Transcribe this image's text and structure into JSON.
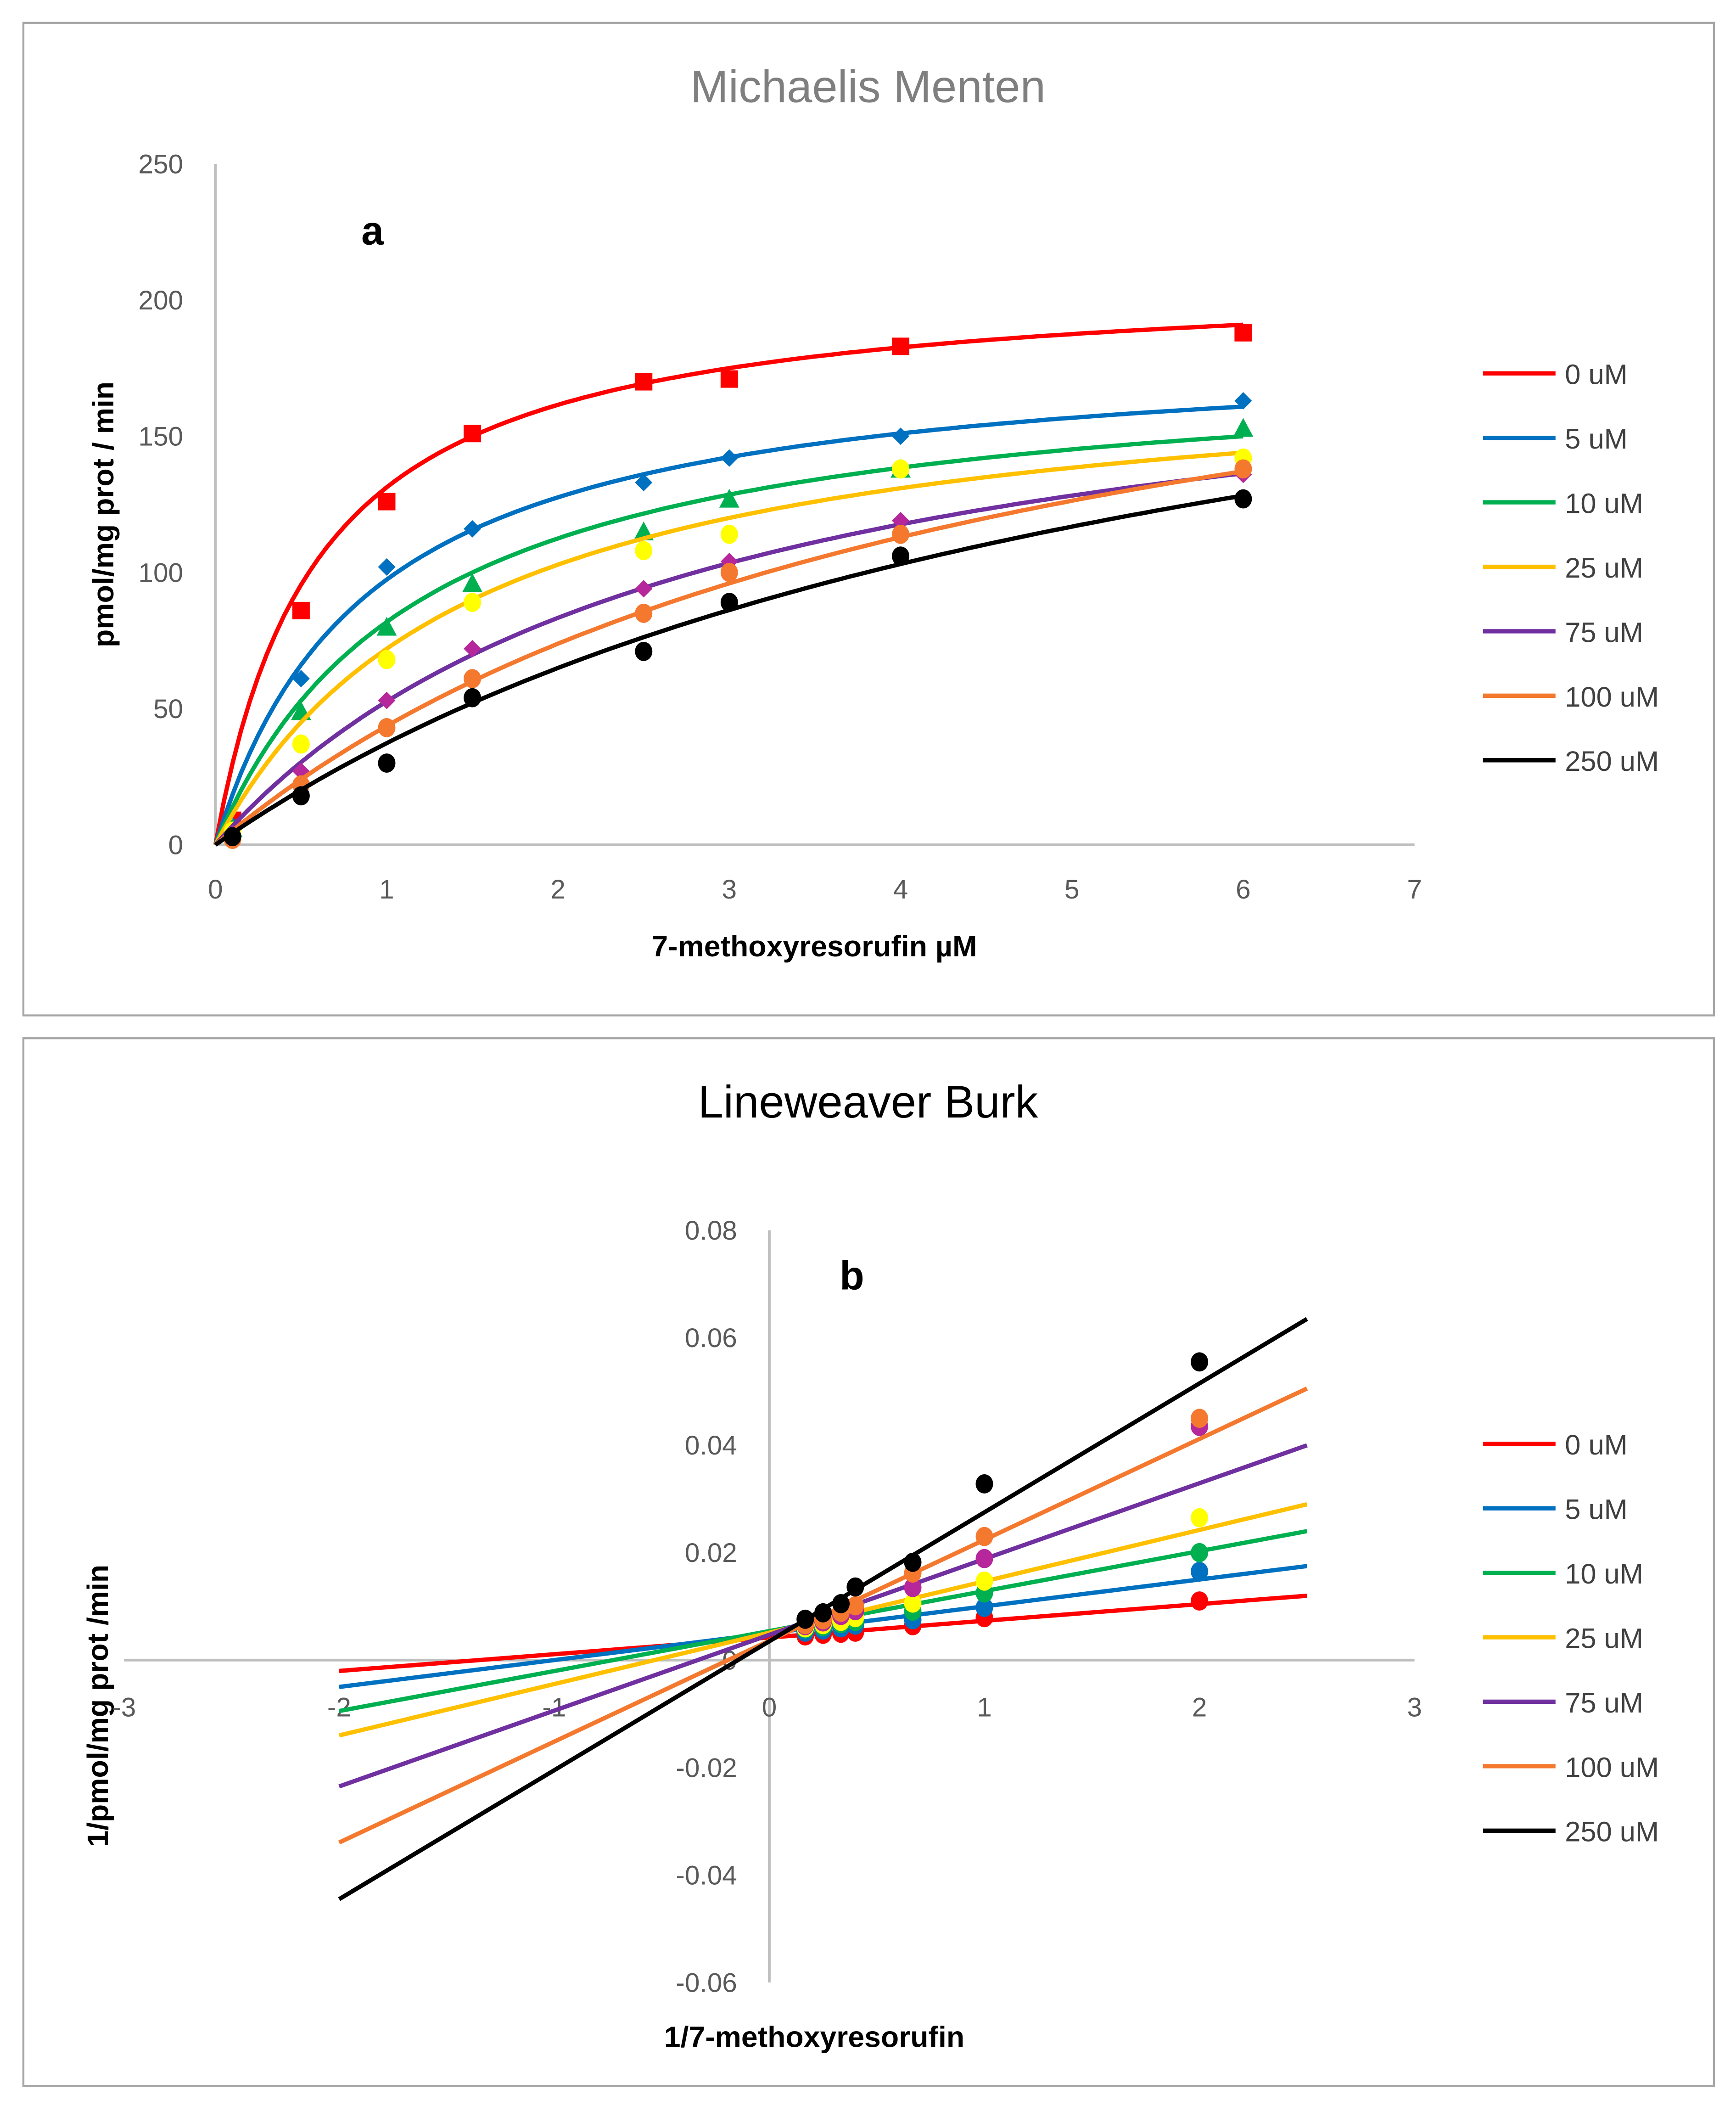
{
  "chart_data": [
    {
      "type": "scatter",
      "title": "Michaelis Menten",
      "panel_label": "a",
      "xlabel": "7-methoxyresorufin µM",
      "ylabel": "pmol/mg prot / min",
      "xlim": [
        0,
        7
      ],
      "ylim": [
        0,
        250
      ],
      "xticks": [
        "0",
        "1",
        "2",
        "3",
        "4",
        "5",
        "6",
        "7"
      ],
      "yticks": [
        "0",
        "50",
        "100",
        "150",
        "200",
        "250"
      ],
      "legend_position": "right",
      "x": [
        0.1,
        0.5,
        1,
        1.5,
        2.5,
        3,
        4,
        6
      ],
      "series": [
        {
          "name": "0 uM",
          "marker": "square",
          "line_color": "#FF0000",
          "marker_color": "#FF0000",
          "values": [
            9,
            86,
            126,
            151,
            170,
            171,
            183,
            188
          ],
          "fit": {
            "vmax": 210,
            "km": 0.6
          }
        },
        {
          "name": "5 uM",
          "marker": "diamond",
          "line_color": "#0070C0",
          "marker_color": "#0070C0",
          "values": [
            7,
            61,
            102,
            116,
            133,
            142,
            150,
            163
          ],
          "fit": {
            "vmax": 185,
            "km": 0.9
          }
        },
        {
          "name": "10 uM",
          "marker": "triangle",
          "line_color": "#00B050",
          "marker_color": "#00B050",
          "values": [
            6,
            49,
            80,
            96,
            115,
            127,
            138,
            153
          ],
          "fit": {
            "vmax": 180,
            "km": 1.2
          }
        },
        {
          "name": "25 uM",
          "marker": "circle",
          "line_color": "#FFC000",
          "marker_color": "#FFFF00",
          "values": [
            5,
            37,
            68,
            89,
            108,
            114,
            138,
            142
          ],
          "fit": {
            "vmax": 180,
            "km": 1.5
          }
        },
        {
          "name": "75 uM",
          "marker": "diamond",
          "line_color": "#7030A0",
          "marker_color": "#B5279A",
          "values": [
            4,
            27,
            53,
            72,
            94,
            104,
            119,
            136
          ],
          "fit": {
            "vmax": 200,
            "km": 2.8
          }
        },
        {
          "name": "100 uM",
          "marker": "circle",
          "line_color": "#F4792F",
          "marker_color": "#F4792F",
          "values": [
            2,
            22,
            43,
            61,
            85,
            100,
            114,
            138
          ],
          "fit": {
            "vmax": 240,
            "km": 4.5
          }
        },
        {
          "name": "250 uM",
          "marker": "circle",
          "line_color": "#000000",
          "marker_color": "#000000",
          "values": [
            3,
            18,
            30,
            54,
            71,
            89,
            106,
            127
          ],
          "fit": {
            "vmax": 250,
            "km": 5.7
          }
        }
      ]
    },
    {
      "type": "scatter",
      "title": "Lineweaver Burk",
      "panel_label": "b",
      "xlabel": "1/7-methoxyresorufin",
      "ylabel": "1/pmol/mg prot /min",
      "xlim": [
        -3,
        3
      ],
      "ylim": [
        -0.06,
        0.08
      ],
      "xticks": [
        "-3",
        "-2",
        "-1",
        "0",
        "1",
        "2",
        "3"
      ],
      "yticks": [
        "-0.06",
        "-0.04",
        "-0.02",
        "0",
        "0.02",
        "0.04",
        "0.06",
        "0.08"
      ],
      "legend_position": "right",
      "fit_range": [
        -2,
        2.5
      ],
      "x": [
        0.167,
        0.25,
        0.333,
        0.4,
        0.667,
        1,
        2
      ],
      "series": [
        {
          "name": "0 uM",
          "line_color": "#FF0000",
          "marker_color": "#FF0000",
          "values": [
            0.0045,
            0.0048,
            0.005,
            0.0052,
            0.0064,
            0.0079,
            0.011
          ],
          "fit": {
            "slope": 0.00311,
            "intercept": 0.0042
          }
        },
        {
          "name": "5 uM",
          "line_color": "#0070C0",
          "marker_color": "#0070C0",
          "values": [
            0.0052,
            0.0056,
            0.006,
            0.0065,
            0.0075,
            0.0098,
            0.0165
          ],
          "fit": {
            "slope": 0.005,
            "intercept": 0.005
          }
        },
        {
          "name": "10 uM",
          "line_color": "#00B050",
          "marker_color": "#00B050",
          "values": [
            0.0058,
            0.0062,
            0.0068,
            0.0072,
            0.0091,
            0.0125,
            0.02
          ],
          "fit": {
            "slope": 0.00744,
            "intercept": 0.0054
          }
        },
        {
          "name": "25 uM",
          "line_color": "#FFC000",
          "marker_color": "#FFFF00",
          "values": [
            0.006,
            0.0066,
            0.0072,
            0.0079,
            0.0106,
            0.0147,
            0.0265
          ],
          "fit": {
            "slope": 0.00956,
            "intercept": 0.0051
          }
        },
        {
          "name": "75 uM",
          "line_color": "#7030A0",
          "marker_color": "#B5279A",
          "values": [
            0.0064,
            0.0071,
            0.0083,
            0.0092,
            0.0135,
            0.0189,
            0.0435
          ],
          "fit": {
            "slope": 0.01411,
            "intercept": 0.0047
          }
        },
        {
          "name": "100 uM",
          "line_color": "#F4792F",
          "marker_color": "#F4792F",
          "values": [
            0.0066,
            0.0075,
            0.0089,
            0.0101,
            0.0162,
            0.023,
            0.045
          ],
          "fit": {
            "slope": 0.01878,
            "intercept": 0.0036
          }
        },
        {
          "name": "250 uM",
          "line_color": "#000000",
          "marker_color": "#000000",
          "values": [
            0.0076,
            0.0088,
            0.0105,
            0.0136,
            0.0182,
            0.0328,
            0.0555
          ],
          "fit": {
            "slope": 0.024,
            "intercept": 0.0035
          }
        }
      ]
    }
  ],
  "colors": {
    "title_a": "#7F7F7F",
    "title_b": "#000000",
    "axis": "#BFBFBF",
    "frame": "#A6A6A6"
  }
}
